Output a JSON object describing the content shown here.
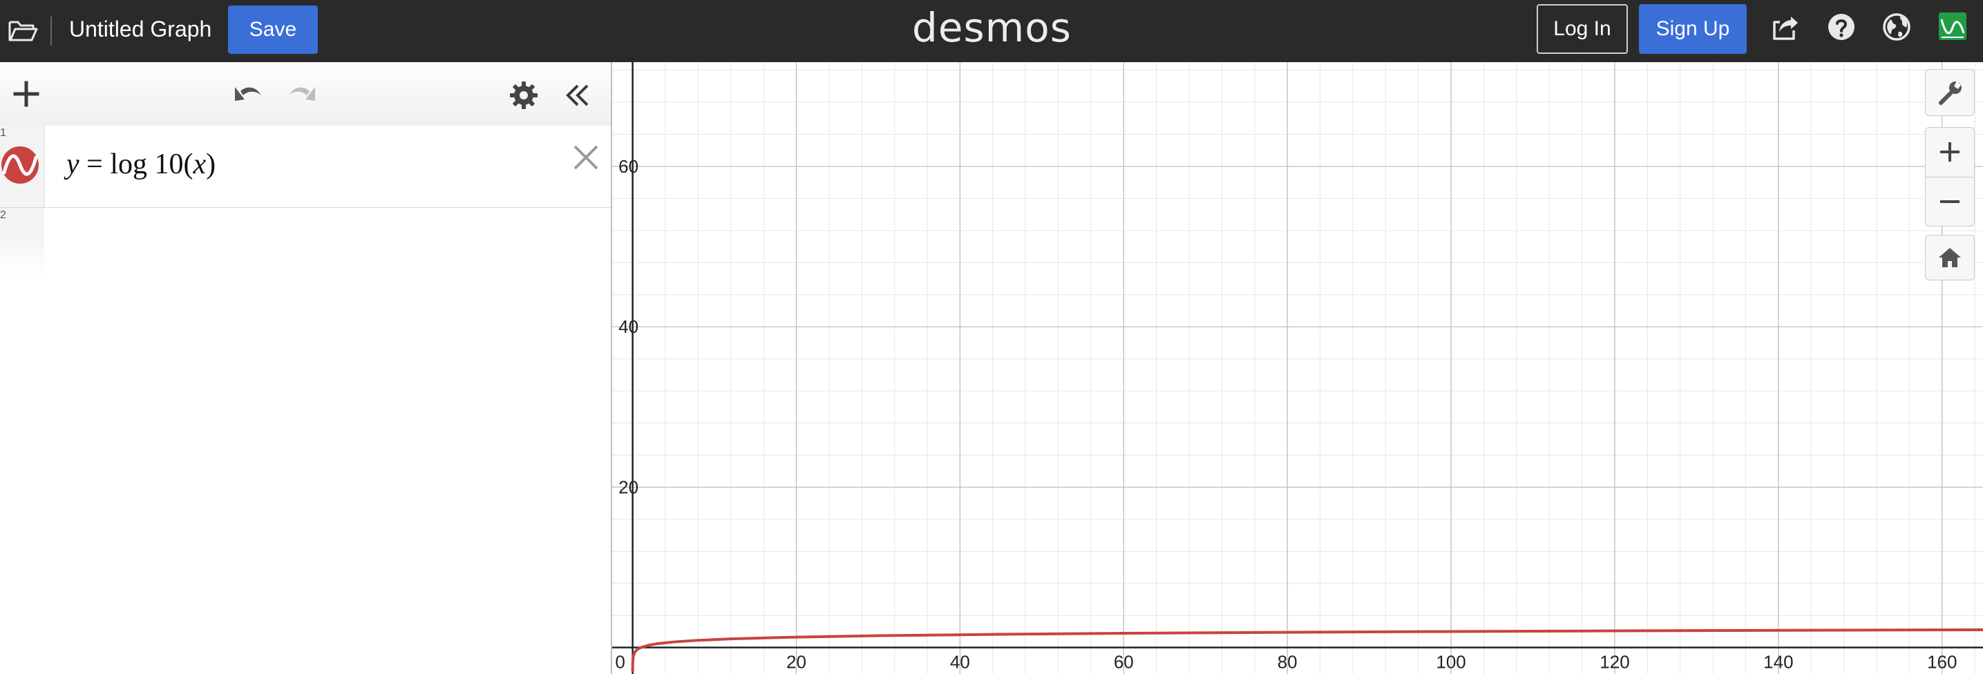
{
  "topbar": {
    "title": "Untitled Graph",
    "save_label": "Save",
    "logo_text": "desmos",
    "login_label": "Log In",
    "signup_label": "Sign Up",
    "icons": [
      "folder-icon",
      "share-icon",
      "help-icon",
      "globe-icon",
      "desmos-app-icon"
    ],
    "colors": {
      "bar": "#2a2a2a",
      "primary_button": "#3a6fd8"
    }
  },
  "panel": {
    "toolbar_icons": [
      "add-icon",
      "undo-icon",
      "redo-icon",
      "settings-icon",
      "collapse-icon"
    ],
    "expressions": [
      {
        "index": "1",
        "latex_display": "y = log 10(x)",
        "color": "#c74440"
      },
      {
        "index": "2",
        "latex_display": ""
      }
    ]
  },
  "graph": {
    "x_ticks": [
      "0",
      "20",
      "40",
      "60",
      "80",
      "100",
      "120",
      "140",
      "160"
    ],
    "y_ticks": [
      "20",
      "40",
      "60"
    ],
    "controls": [
      "wrench-icon",
      "zoom-in-icon",
      "zoom-out-icon",
      "home-icon"
    ],
    "curve_color": "#c74440"
  },
  "chart_data": {
    "type": "line",
    "title": "",
    "xlabel": "",
    "ylabel": "",
    "xlim": [
      -2.5,
      165
    ],
    "ylim": [
      -3.3,
      73
    ],
    "grid": true,
    "series": [
      {
        "x": [
          0.001,
          0.01,
          0.05,
          0.1,
          0.3,
          0.6,
          1,
          2,
          3,
          5,
          8,
          12,
          20,
          30,
          45,
          60,
          80,
          100,
          120,
          140,
          160,
          165
        ],
        "y": [
          -3,
          -2,
          -1.301,
          -1,
          -0.523,
          -0.222,
          0,
          0.301,
          0.477,
          0.699,
          0.903,
          1.079,
          1.301,
          1.477,
          1.653,
          1.778,
          1.903,
          2,
          2.079,
          2.146,
          2.204,
          2.217
        ]
      }
    ]
  }
}
